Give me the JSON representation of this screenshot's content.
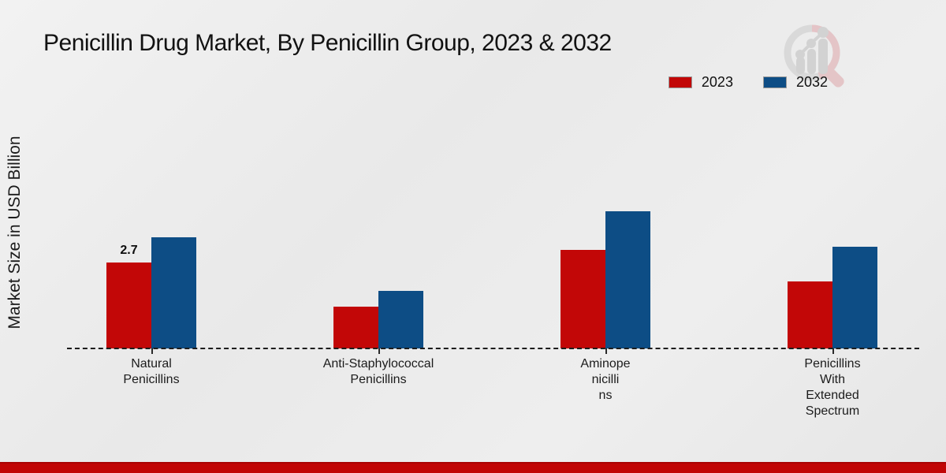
{
  "chart_data": {
    "type": "bar",
    "title": "Penicillin Drug Market, By Penicillin Group, 2023 & 2032",
    "ylabel": "Market Size in USD Billion",
    "categories": [
      "Natural Penicillins",
      "Anti-Staphylococcal Penicillins",
      "Aminopenicillins",
      "Penicillins With Extended Spectrum"
    ],
    "category_display_lines": [
      [
        "Natural",
        "Penicillins"
      ],
      [
        "Anti-Staphylococcal",
        "Penicillins"
      ],
      [
        "Aminope",
        "nicilli",
        "ns"
      ],
      [
        "Penicillins",
        "With",
        "Extended",
        "Spectrum"
      ]
    ],
    "series": [
      {
        "name": "2023",
        "color": "#c20707",
        "values": [
          2.7,
          1.3,
          3.1,
          2.1
        ]
      },
      {
        "name": "2032",
        "color": "#0d4d85",
        "values": [
          3.5,
          1.8,
          4.3,
          3.2
        ]
      }
    ],
    "data_labels": [
      {
        "series_index": 0,
        "category_index": 0,
        "text": "2.7"
      }
    ],
    "ylim": [
      0,
      5.5
    ],
    "legend_position": "top-right",
    "grid": false,
    "baseline_style": "dashed"
  },
  "watermark": {
    "icon": "magnifier-bar-chart-logo",
    "ring_color": "#e0b0b4",
    "bars_color": "#c5c5c5"
  },
  "footer": {
    "bar_color": "#c10505"
  }
}
